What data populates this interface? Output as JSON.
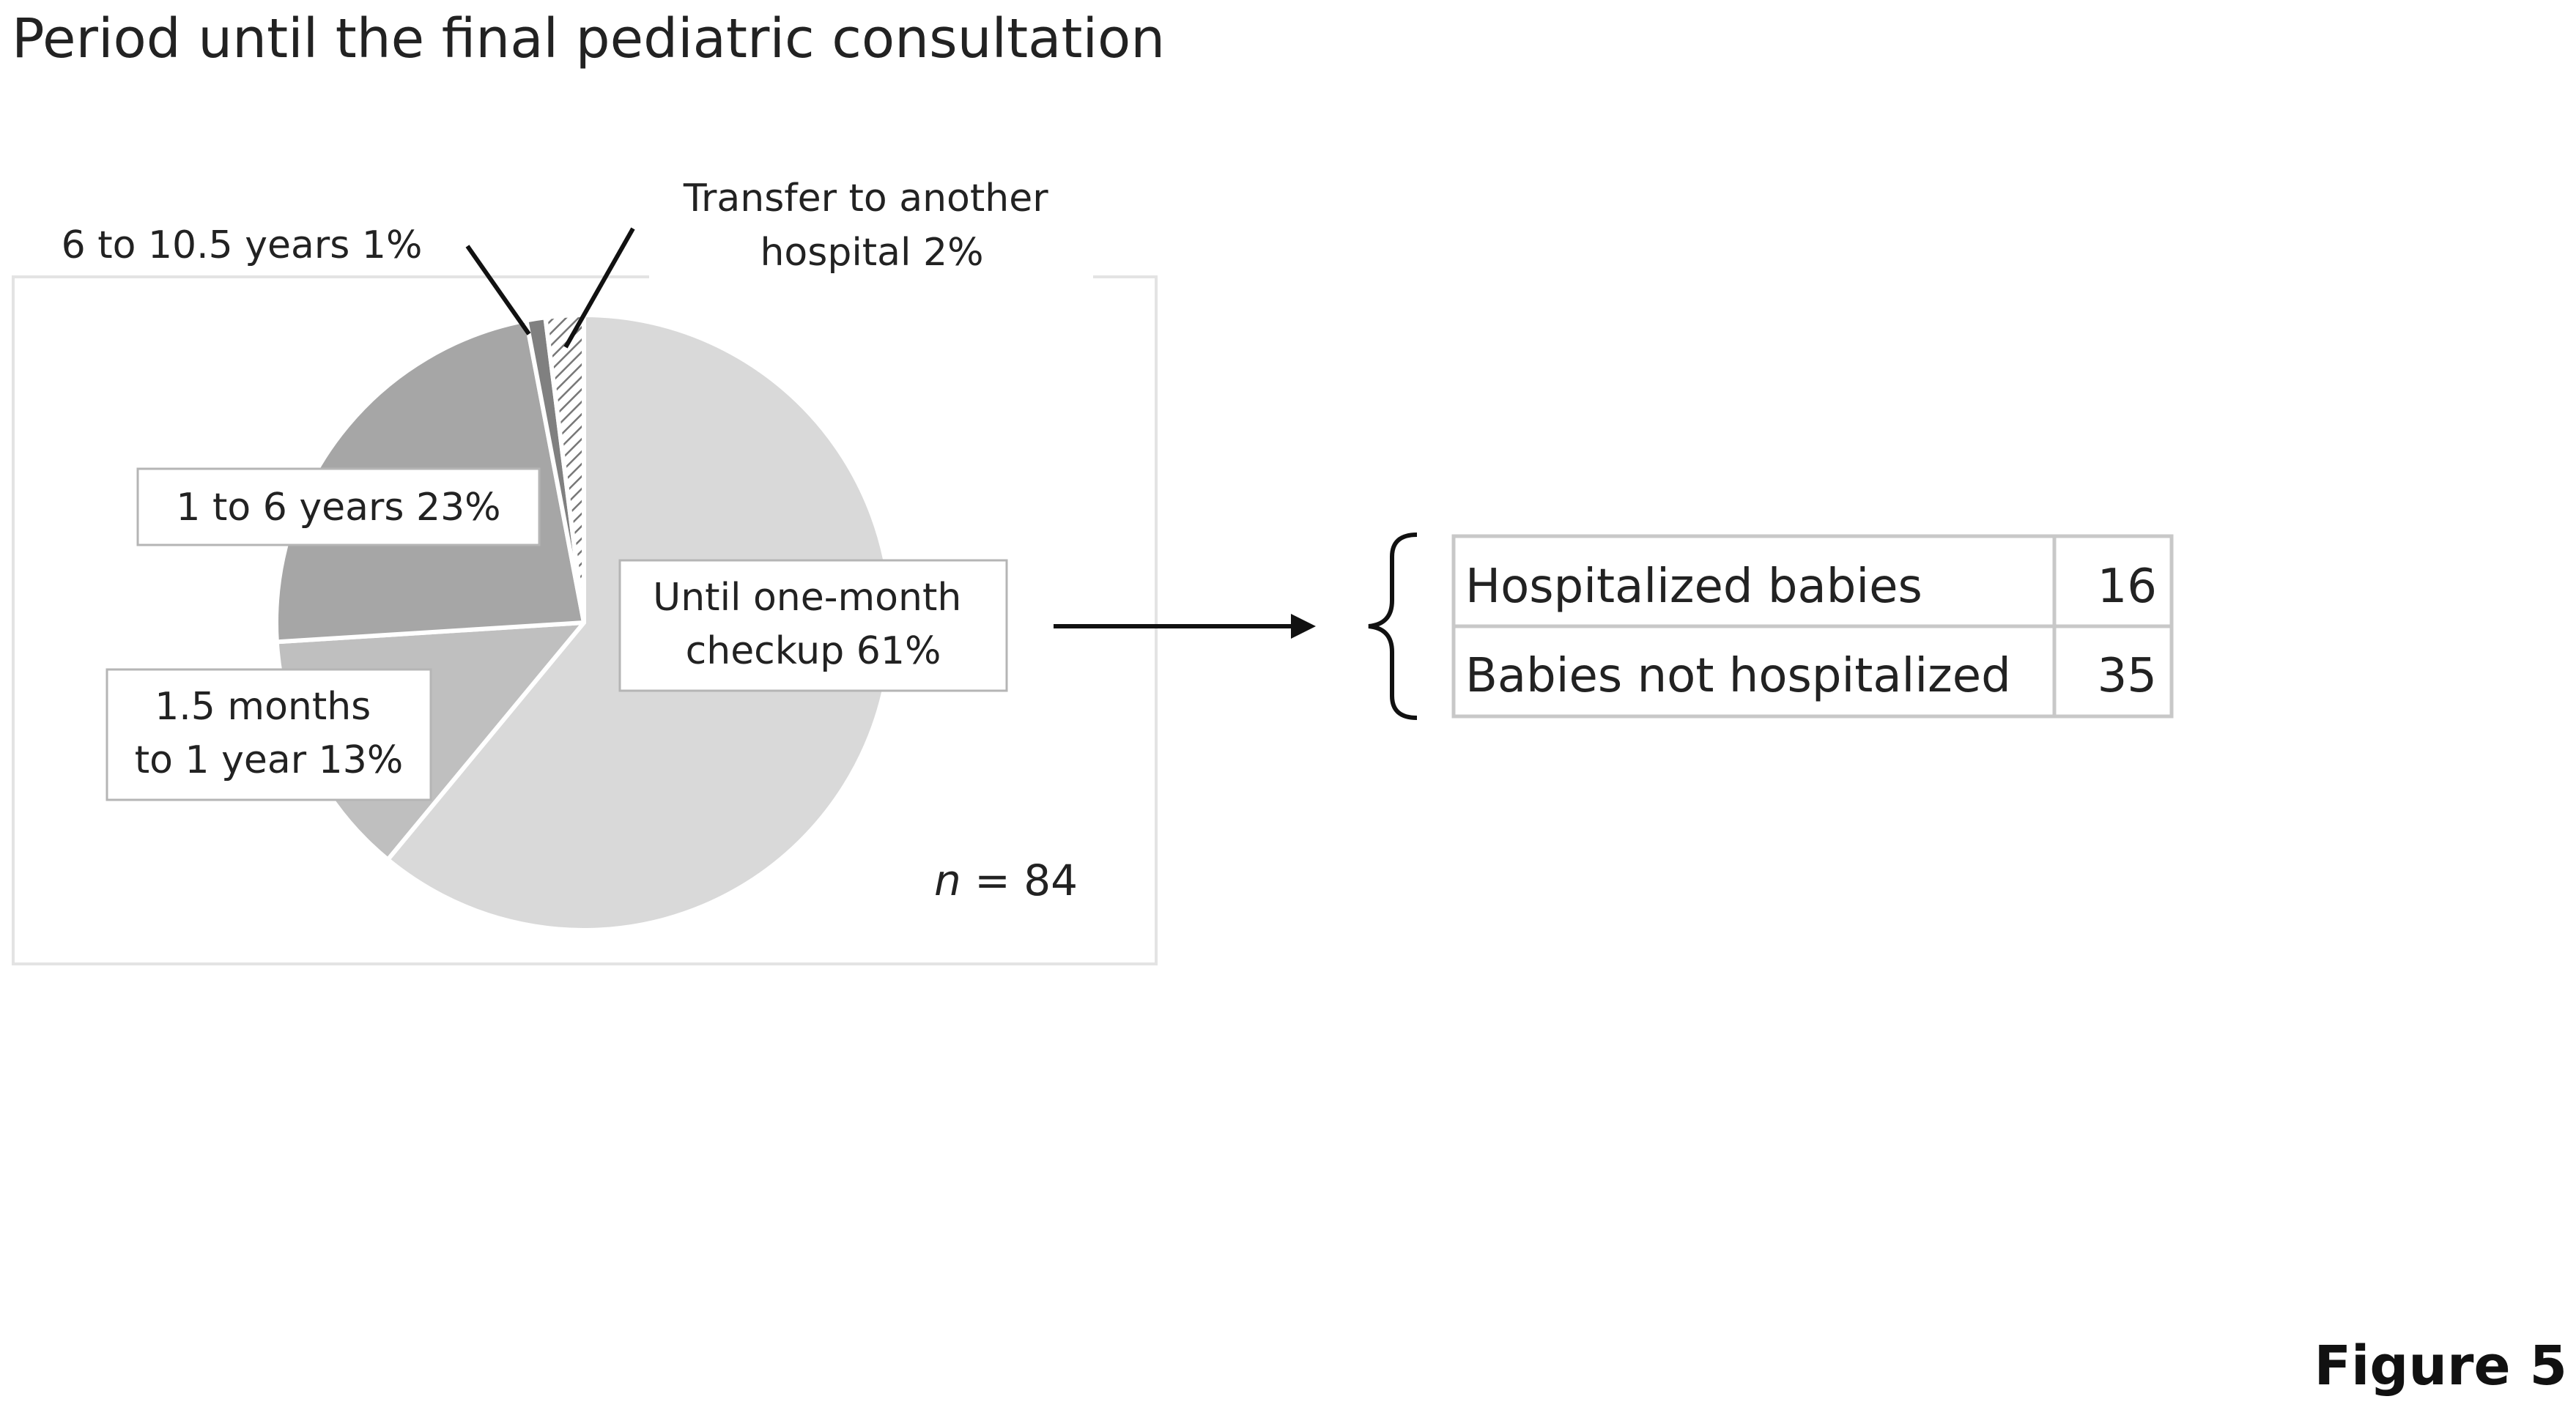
{
  "title": "Period until the final pediatric consultation",
  "figure_label": "Figure 5",
  "chart_data": {
    "type": "pie",
    "title": "Period until the final pediatric consultation",
    "n_label_var": "n",
    "n_label_rest": " = 84",
    "slices": [
      {
        "label_lines": [
          "Until one-month",
          "checkup 61%"
        ],
        "value": 61,
        "color": "#d9d9d9",
        "pattern": "none"
      },
      {
        "label_lines": [
          "1.5 months",
          "to 1 year 13%"
        ],
        "value": 13,
        "color": "#bfbfbf",
        "pattern": "none"
      },
      {
        "label_lines": [
          "1 to 6 years 23%"
        ],
        "value": 23,
        "color": "#a6a6a6",
        "pattern": "none"
      },
      {
        "label_lines": [
          "6 to 10.5 years 1%"
        ],
        "value": 1,
        "color": "#808080",
        "pattern": "none"
      },
      {
        "label_lines": [
          "Transfer to another",
          "hospital 2%"
        ],
        "value": 2,
        "color": "#ffffff",
        "pattern": "hatch"
      }
    ],
    "start": "12 o'clock",
    "direction": "clockwise",
    "legend": "none"
  },
  "breakdown": {
    "rows": [
      {
        "label": "Hospitalized babies",
        "value": "16"
      },
      {
        "label": "Babies not hospitalized",
        "value": "35"
      }
    ]
  }
}
